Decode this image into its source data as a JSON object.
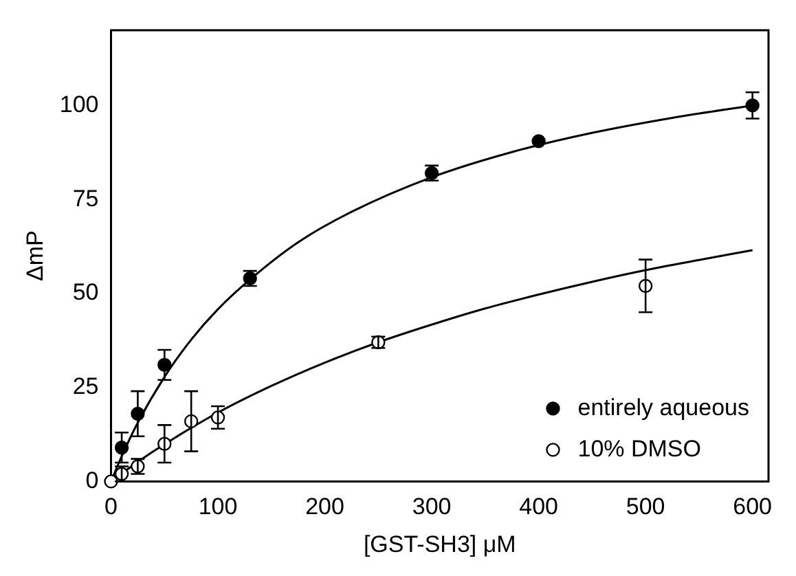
{
  "chart_data": {
    "type": "scatter",
    "xlabel": "[GST-SH3] μM",
    "ylabel": "ΔmP",
    "xlim": [
      0,
      615
    ],
    "ylim": [
      0,
      120
    ],
    "xticks": [
      0,
      100,
      200,
      300,
      400,
      500,
      600
    ],
    "yticks": [
      0,
      25,
      50,
      75,
      100
    ],
    "grid": false,
    "legend": "bottom right",
    "series": [
      {
        "name": "entirely aqueous",
        "color": "#000000",
        "marker": "circle",
        "x": [
          10,
          25,
          50,
          130,
          300,
          400,
          600
        ],
        "values": [
          9,
          18,
          31,
          54,
          82,
          90.5,
          100
        ],
        "errors": [
          4,
          6,
          4,
          2,
          2,
          null,
          3.5
        ]
      },
      {
        "name": "10% DMSO",
        "color": "#ffffff",
        "marker": "circle",
        "x": [
          0,
          10,
          25,
          50,
          75,
          100,
          250,
          500
        ],
        "values": [
          0,
          2,
          4,
          10,
          16,
          17,
          37,
          52
        ],
        "errors": [
          null,
          2,
          2,
          5,
          8,
          3,
          1.5,
          7
        ]
      },
      {
        "type": "line",
        "color": "#000000",
        "marker": "none",
        "x": [
          0,
          10,
          25,
          50,
          75,
          100,
          130,
          175,
          225,
          300,
          375,
          450,
          525,
          600
        ],
        "values": [
          0,
          6.7,
          15.6,
          27.8,
          37.7,
          45.8,
          53.7,
          63.6,
          71.7,
          80.9,
          87.6,
          92.7,
          96.7,
          100
        ]
      },
      {
        "type": "line",
        "color": "#000000",
        "marker": "none",
        "x": [
          0,
          25,
          50,
          100,
          150,
          200,
          250,
          300,
          350,
          400,
          450,
          500,
          550,
          600
        ],
        "values": [
          0,
          5.2,
          9.9,
          18.3,
          25.4,
          31.6,
          37.0,
          41.7,
          46.0,
          49.7,
          53.1,
          56.2,
          58.9,
          61.5
        ]
      }
    ]
  }
}
